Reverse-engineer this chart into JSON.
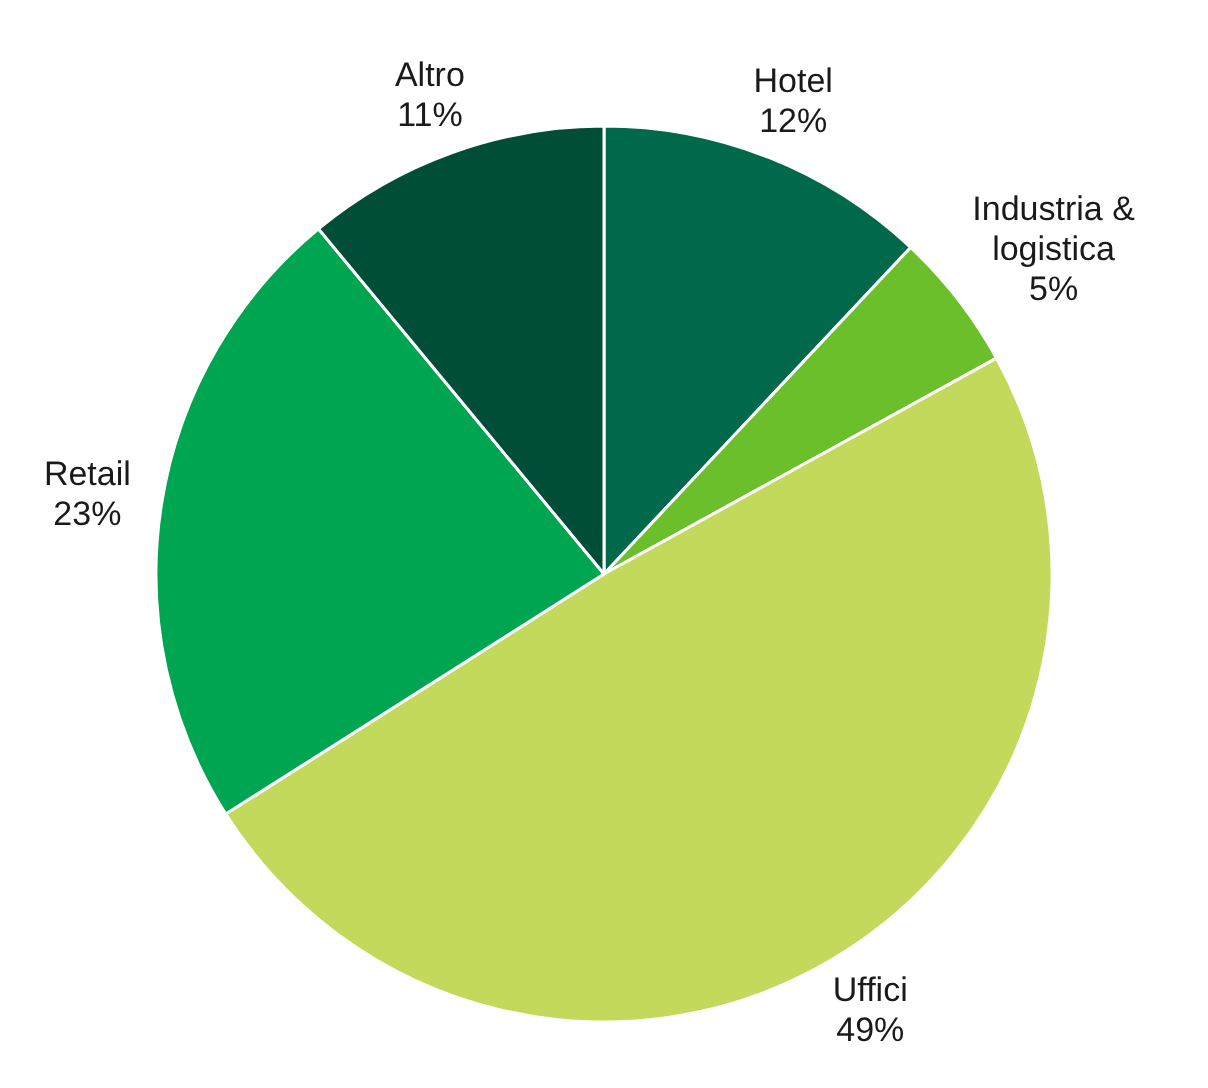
{
  "chart_data": {
    "type": "pie",
    "categories": [
      "Hotel",
      "Industria & logistica",
      "Uffici",
      "Retail",
      "Altro"
    ],
    "values": [
      12,
      5,
      49,
      23,
      11
    ],
    "value_labels": [
      "12%",
      "5%",
      "49%",
      "23%",
      "11%"
    ],
    "colors": [
      "#00694c",
      "#6abf2a",
      "#c2d95b",
      "#00a551",
      "#004d38"
    ]
  }
}
